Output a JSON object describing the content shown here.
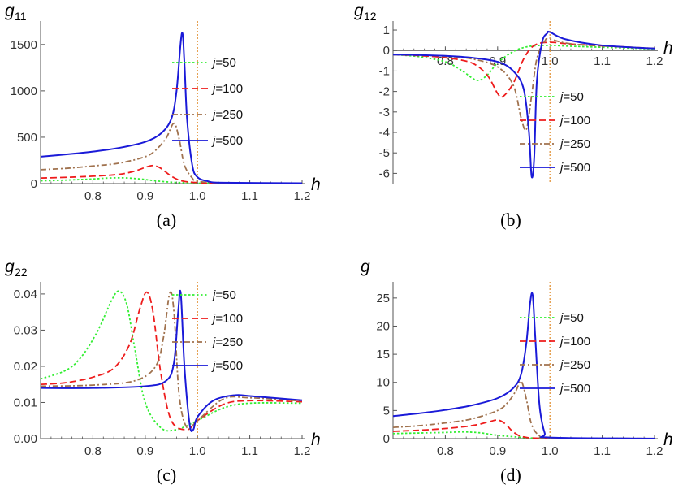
{
  "colors": {
    "j50": "#33ee33",
    "j100": "#ee1c1c",
    "j250": "#a0724e",
    "j500": "#1a1ad8",
    "critical_line": "#e08a2a",
    "axis": "#555555"
  },
  "chart_data": [
    {
      "type": "line",
      "caption": "(a)",
      "ylabel": "g",
      "ylabel_sub": "11",
      "xlabel": "h",
      "xlim": [
        0.7,
        1.2
      ],
      "ylim": [
        0,
        1700
      ],
      "xticks": [
        0.8,
        0.9,
        1.0,
        1.1,
        1.2
      ],
      "xtick_labels": [
        "0.8",
        "0.9",
        "1.0",
        "1.1",
        "1.2"
      ],
      "yticks": [
        0,
        500,
        1000,
        1500
      ],
      "ytick_labels": [
        "0",
        "500",
        "1000",
        "1500"
      ],
      "critical_h": 1.0,
      "legend": [
        "j=50",
        "j=100",
        "j=250",
        "j=500"
      ],
      "series": [
        {
          "name": "j=50",
          "x": [
            0.7,
            0.75,
            0.8,
            0.83,
            0.86,
            0.89,
            0.92,
            0.95,
            0.98,
            1.0,
            1.05,
            1.2
          ],
          "y": [
            30,
            38,
            50,
            60,
            62,
            50,
            30,
            15,
            8,
            4,
            2,
            1
          ]
        },
        {
          "name": "j=100",
          "x": [
            0.7,
            0.75,
            0.8,
            0.85,
            0.88,
            0.9,
            0.915,
            0.93,
            0.95,
            0.97,
            1.0,
            1.05,
            1.2
          ],
          "y": [
            60,
            68,
            80,
            100,
            135,
            175,
            195,
            165,
            80,
            30,
            10,
            4,
            2
          ]
        },
        {
          "name": "j=250",
          "x": [
            0.7,
            0.75,
            0.8,
            0.85,
            0.9,
            0.92,
            0.94,
            0.955,
            0.965,
            0.975,
            0.99,
            1.0,
            1.05,
            1.2
          ],
          "y": [
            150,
            165,
            190,
            220,
            290,
            360,
            490,
            650,
            480,
            200,
            60,
            25,
            8,
            3
          ]
        },
        {
          "name": "j=500",
          "x": [
            0.7,
            0.75,
            0.8,
            0.85,
            0.9,
            0.93,
            0.95,
            0.96,
            0.97,
            0.975,
            0.98,
            0.99,
            1.0,
            1.02,
            1.05,
            1.2
          ],
          "y": [
            290,
            315,
            345,
            385,
            450,
            540,
            700,
            1000,
            1620,
            1300,
            700,
            200,
            70,
            25,
            10,
            4
          ]
        }
      ]
    },
    {
      "type": "line",
      "caption": "(b)",
      "ylabel": "g",
      "ylabel_sub": "12",
      "xlabel": "h",
      "xlim": [
        0.7,
        1.2
      ],
      "ylim": [
        -6.5,
        1.2
      ],
      "xticks": [
        0.8,
        0.9,
        1.0,
        1.1,
        1.2
      ],
      "xtick_labels": [
        "0.8",
        "0.9",
        "1.0",
        "1.1",
        "1.2"
      ],
      "yticks": [
        1,
        0,
        -1,
        -2,
        -3,
        -4,
        -5,
        -6
      ],
      "ytick_labels": [
        "1",
        "0",
        "-1",
        "-2",
        "-3",
        "-4",
        "-5",
        "-6"
      ],
      "critical_h": 1.0,
      "legend": [
        "j=50",
        "j=100",
        "j=250",
        "j=500"
      ],
      "series": [
        {
          "name": "j=50",
          "x": [
            0.7,
            0.75,
            0.8,
            0.83,
            0.86,
            0.88,
            0.9,
            0.93,
            0.96,
            1.0,
            1.05,
            1.2
          ],
          "y": [
            -0.2,
            -0.3,
            -0.55,
            -0.95,
            -1.45,
            -1.2,
            -0.6,
            -0.05,
            0.2,
            0.25,
            0.2,
            0.08
          ]
        },
        {
          "name": "j=100",
          "x": [
            0.7,
            0.75,
            0.8,
            0.85,
            0.88,
            0.9,
            0.91,
            0.93,
            0.95,
            0.97,
            1.0,
            1.05,
            1.2
          ],
          "y": [
            -0.2,
            -0.25,
            -0.35,
            -0.6,
            -1.2,
            -2.1,
            -2.25,
            -1.6,
            -0.4,
            0.25,
            0.4,
            0.3,
            0.1
          ]
        },
        {
          "name": "j=250",
          "x": [
            0.7,
            0.75,
            0.8,
            0.85,
            0.9,
            0.93,
            0.945,
            0.955,
            0.965,
            0.975,
            0.99,
            1.0,
            1.05,
            1.2
          ],
          "y": [
            -0.2,
            -0.22,
            -0.28,
            -0.4,
            -0.8,
            -1.7,
            -3.3,
            -3.85,
            -2.2,
            -0.4,
            0.45,
            0.55,
            0.3,
            0.1
          ]
        },
        {
          "name": "j=500",
          "x": [
            0.7,
            0.75,
            0.8,
            0.85,
            0.9,
            0.93,
            0.95,
            0.96,
            0.965,
            0.97,
            0.975,
            0.985,
            0.995,
            1.0,
            1.03,
            1.1,
            1.2
          ],
          "y": [
            -0.2,
            -0.22,
            -0.26,
            -0.35,
            -0.55,
            -1.0,
            -1.9,
            -4.0,
            -6.15,
            -5.2,
            -1.5,
            0.4,
            0.85,
            0.9,
            0.55,
            0.25,
            0.1
          ]
        }
      ]
    },
    {
      "type": "line",
      "caption": "(c)",
      "ylabel": "g",
      "ylabel_sub": "22",
      "xlabel": "h",
      "xlim": [
        0.7,
        1.2
      ],
      "ylim": [
        0,
        0.042
      ],
      "xticks": [
        0.8,
        0.9,
        1.0,
        1.1,
        1.2
      ],
      "xtick_labels": [
        "0.8",
        "0.9",
        "1.0",
        "1.1",
        "1.2"
      ],
      "yticks": [
        0,
        0.01,
        0.02,
        0.03,
        0.04
      ],
      "ytick_labels": [
        "0.00",
        "0.01",
        "0.02",
        "0.03",
        "0.04"
      ],
      "critical_h": 1.0,
      "legend": [
        "j=50",
        "j=100",
        "j=250",
        "j=500"
      ],
      "series": [
        {
          "name": "j=50",
          "x": [
            0.7,
            0.75,
            0.78,
            0.81,
            0.835,
            0.85,
            0.865,
            0.88,
            0.9,
            0.93,
            0.96,
            1.0,
            1.05,
            1.1,
            1.2
          ],
          "y": [
            0.0165,
            0.019,
            0.023,
            0.03,
            0.038,
            0.0408,
            0.037,
            0.025,
            0.01,
            0.003,
            0.0025,
            0.005,
            0.0085,
            0.0098,
            0.0098
          ]
        },
        {
          "name": "j=100",
          "x": [
            0.7,
            0.75,
            0.8,
            0.84,
            0.87,
            0.89,
            0.903,
            0.915,
            0.93,
            0.95,
            0.98,
            1.0,
            1.05,
            1.1,
            1.2
          ],
          "y": [
            0.015,
            0.0155,
            0.017,
            0.0195,
            0.026,
            0.036,
            0.0405,
            0.035,
            0.018,
            0.005,
            0.0025,
            0.005,
            0.0095,
            0.0105,
            0.0102
          ]
        },
        {
          "name": "j=250",
          "x": [
            0.7,
            0.8,
            0.88,
            0.92,
            0.935,
            0.947,
            0.955,
            0.965,
            0.98,
            1.0,
            1.05,
            1.1,
            1.2
          ],
          "y": [
            0.0145,
            0.0148,
            0.016,
            0.02,
            0.028,
            0.0402,
            0.035,
            0.012,
            0.003,
            0.005,
            0.011,
            0.0113,
            0.0104
          ]
        },
        {
          "name": "j=500",
          "x": [
            0.7,
            0.8,
            0.9,
            0.94,
            0.955,
            0.963,
            0.968,
            0.975,
            0.985,
            0.992,
            1.0,
            1.03,
            1.07,
            1.1,
            1.2
          ],
          "y": [
            0.014,
            0.014,
            0.0145,
            0.016,
            0.021,
            0.035,
            0.0402,
            0.02,
            0.004,
            0.0025,
            0.006,
            0.0105,
            0.012,
            0.0118,
            0.0106
          ]
        }
      ]
    },
    {
      "type": "line",
      "caption": "(d)",
      "ylabel": "g",
      "ylabel_sub": "",
      "xlabel": "h",
      "xlim": [
        0.7,
        1.2
      ],
      "ylim": [
        0,
        27
      ],
      "xticks": [
        0.8,
        0.9,
        1.0,
        1.1,
        1.2
      ],
      "xtick_labels": [
        "0.8",
        "0.9",
        "1.0",
        "1.1",
        "1.2"
      ],
      "yticks": [
        0,
        5,
        10,
        15,
        20,
        25
      ],
      "ytick_labels": [
        "0",
        "5",
        "10",
        "15",
        "20",
        "25"
      ],
      "critical_h": 1.0,
      "legend": [
        "j=50",
        "j=100",
        "j=250",
        "j=500"
      ],
      "series": [
        {
          "name": "j=50",
          "x": [
            0.7,
            0.75,
            0.8,
            0.83,
            0.85,
            0.87,
            0.9,
            0.95,
            1.0,
            1.2
          ],
          "y": [
            0.9,
            1.0,
            1.1,
            1.2,
            1.15,
            1.0,
            0.6,
            0.2,
            0.05,
            0.02
          ]
        },
        {
          "name": "j=100",
          "x": [
            0.7,
            0.75,
            0.8,
            0.85,
            0.88,
            0.9,
            0.915,
            0.93,
            0.95,
            1.0,
            1.2
          ],
          "y": [
            1.3,
            1.5,
            1.8,
            2.3,
            2.9,
            3.3,
            2.6,
            1.2,
            0.3,
            0.05,
            0.02
          ]
        },
        {
          "name": "j=250",
          "x": [
            0.7,
            0.75,
            0.8,
            0.85,
            0.9,
            0.92,
            0.935,
            0.945,
            0.955,
            0.965,
            0.98,
            1.0,
            1.2
          ],
          "y": [
            2.0,
            2.3,
            2.8,
            3.5,
            5.0,
            6.5,
            8.5,
            10.2,
            7.0,
            2.5,
            0.5,
            0.1,
            0.02
          ]
        },
        {
          "name": "j=500",
          "x": [
            0.7,
            0.75,
            0.8,
            0.85,
            0.9,
            0.93,
            0.945,
            0.955,
            0.962,
            0.967,
            0.972,
            0.98,
            0.99,
            1.0,
            1.2
          ],
          "y": [
            4.0,
            4.5,
            5.1,
            5.9,
            7.2,
            9.0,
            11.5,
            17.0,
            24.0,
            25.5,
            18.0,
            6.0,
            1.0,
            0.2,
            0.02
          ]
        }
      ]
    }
  ]
}
